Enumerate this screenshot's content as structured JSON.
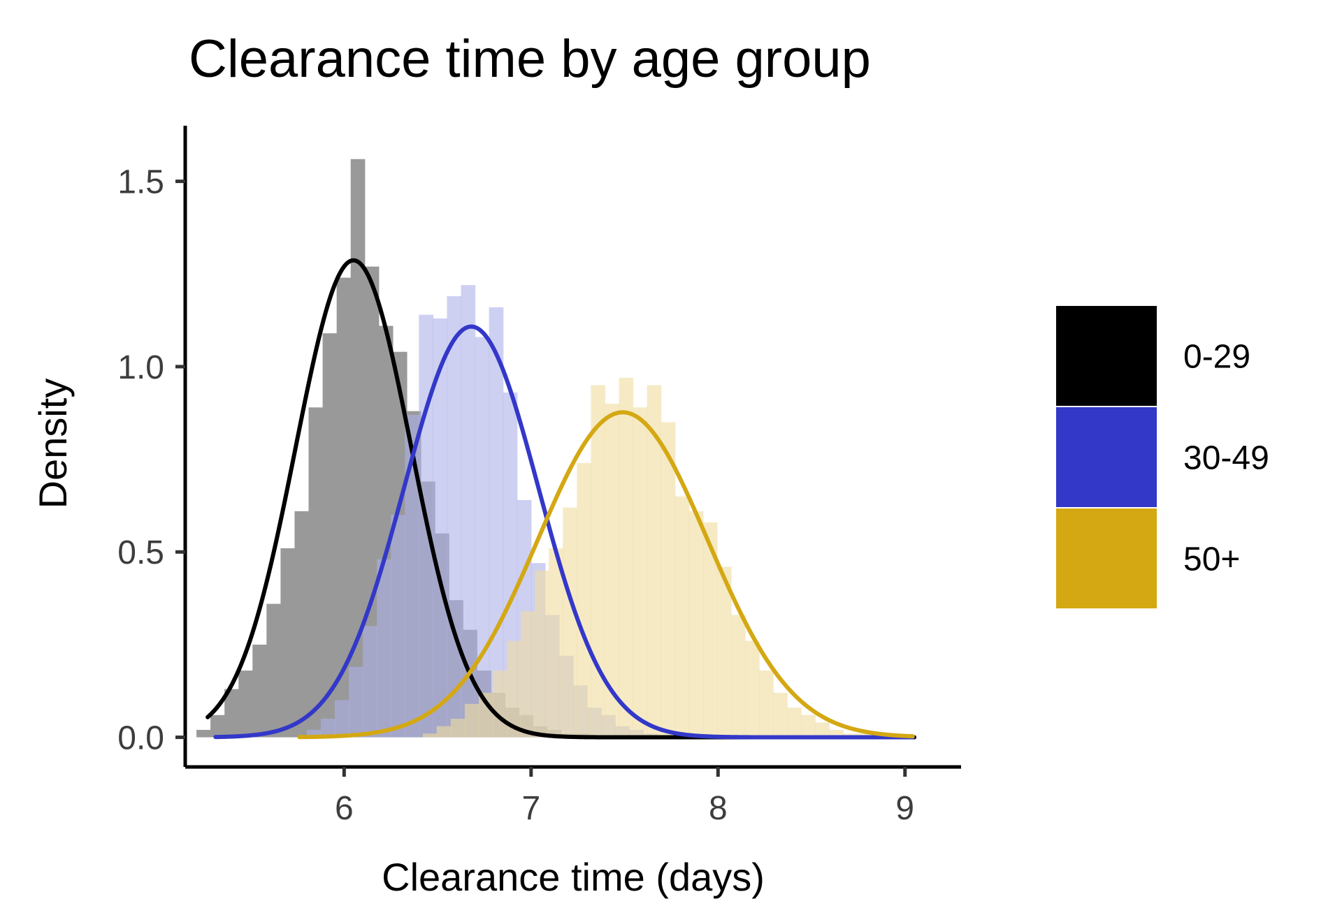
{
  "chart_data": {
    "type": "histogram-density",
    "title": "Clearance time by age group",
    "xlabel": "Clearance time (days)",
    "ylabel": "Density",
    "xlim": [
      5.15,
      9.3
    ],
    "ylim": [
      -0.08,
      1.65
    ],
    "xticks": [
      6,
      7,
      8,
      9
    ],
    "yticks": [
      0.0,
      0.5,
      1.0,
      1.5
    ],
    "ytick_labels": [
      "0.0",
      "0.5",
      "1.0",
      "1.5"
    ],
    "grid": false,
    "legend_position": "right",
    "bin_width": 0.075,
    "series": [
      {
        "name": "0-29",
        "line_color": "#000000",
        "fill_color": "#999999",
        "fill_opacity": 1.0,
        "density_mean": 6.05,
        "density_sd": 0.31,
        "histogram": {
          "start": 5.21,
          "densities": [
            0.02,
            0.06,
            0.13,
            0.18,
            0.25,
            0.36,
            0.51,
            0.61,
            0.89,
            1.09,
            1.24,
            1.56,
            1.27,
            1.11,
            1.04,
            0.88,
            0.69,
            0.55,
            0.37,
            0.29,
            0.18,
            0.12,
            0.08,
            0.06,
            0.03,
            0.02,
            0.01,
            0.01
          ]
        }
      },
      {
        "name": "30-49",
        "line_color": "#3338c9",
        "fill_color": "#adb1e9",
        "fill_opacity": 1.0,
        "density_mean": 6.68,
        "density_sd": 0.36,
        "histogram": {
          "start": 5.8,
          "densities": [
            0.02,
            0.05,
            0.1,
            0.19,
            0.3,
            0.48,
            0.6,
            0.87,
            1.14,
            1.13,
            1.19,
            1.22,
            1.08,
            1.16,
            0.93,
            0.64,
            0.47,
            0.33,
            0.22,
            0.14,
            0.08,
            0.06,
            0.03,
            0.02,
            0.01
          ]
        }
      },
      {
        "name": "50+",
        "line_color": "#d4a813",
        "fill_color": "#f0dc9e",
        "fill_opacity": 1.0,
        "density_mean": 7.49,
        "density_sd": 0.455,
        "histogram": {
          "start": 6.42,
          "densities": [
            0.01,
            0.03,
            0.05,
            0.09,
            0.12,
            0.18,
            0.26,
            0.34,
            0.45,
            0.51,
            0.62,
            0.74,
            0.95,
            0.9,
            0.97,
            0.89,
            0.95,
            0.85,
            0.65,
            0.61,
            0.58,
            0.46,
            0.33,
            0.26,
            0.18,
            0.12,
            0.08,
            0.06,
            0.04,
            0.02,
            0.01,
            0.01,
            0.01
          ]
        }
      }
    ],
    "legend": [
      {
        "label": "0-29",
        "color": "#000000"
      },
      {
        "label": "30-49",
        "color": "#3338c9"
      },
      {
        "label": "50+",
        "color": "#d4a813"
      }
    ]
  }
}
